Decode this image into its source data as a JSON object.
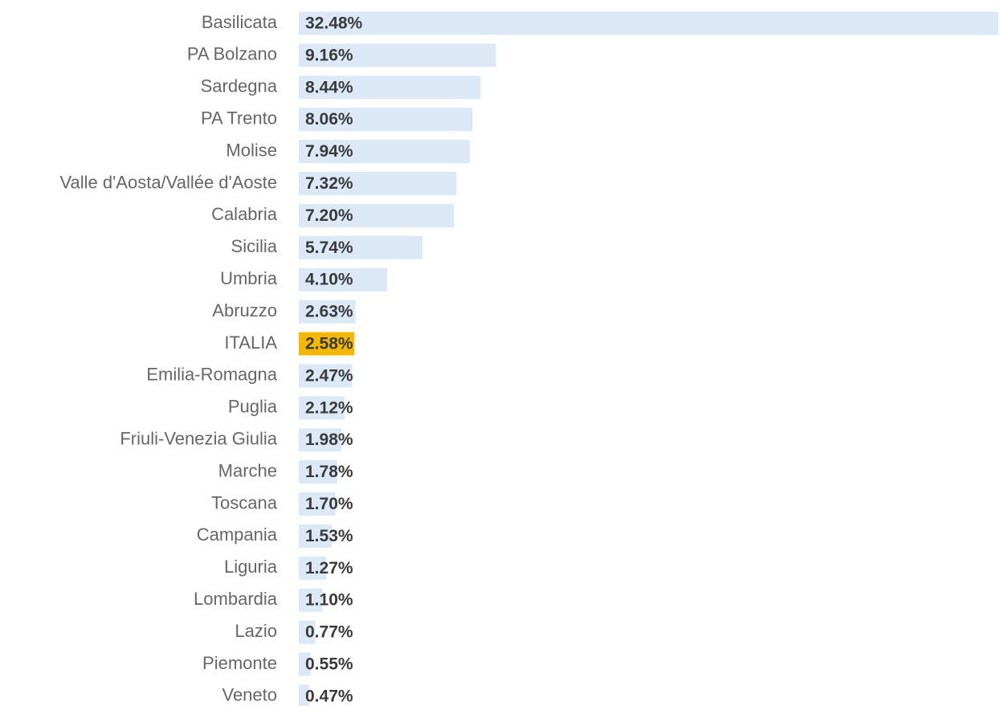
{
  "chart_data": {
    "type": "bar",
    "orientation": "horizontal",
    "categories": [
      "Basilicata",
      "PA Bolzano",
      "Sardegna",
      "PA Trento",
      "Molise",
      "Valle d'Aosta/Vallée d'Aoste",
      "Calabria",
      "Sicilia",
      "Umbria",
      "Abruzzo",
      "ITALIA",
      "Emilia-Romagna",
      "Puglia",
      "Friuli-Venezia Giulia",
      "Marche",
      "Toscana",
      "Campania",
      "Liguria",
      "Lombardia",
      "Lazio",
      "Piemonte",
      "Veneto"
    ],
    "values": [
      32.48,
      9.16,
      8.44,
      8.06,
      7.94,
      7.32,
      7.2,
      5.74,
      4.1,
      2.63,
      2.58,
      2.47,
      2.12,
      1.98,
      1.78,
      1.7,
      1.53,
      1.27,
      1.1,
      0.77,
      0.55,
      0.47
    ],
    "value_labels": [
      "32.48%",
      "9.16%",
      "8.44%",
      "8.06%",
      "7.94%",
      "7.32%",
      "7.20%",
      "5.74%",
      "4.10%",
      "2.63%",
      "2.58%",
      "2.47%",
      "2.12%",
      "1.98%",
      "1.78%",
      "1.70%",
      "1.53%",
      "1.27%",
      "1.10%",
      "0.77%",
      "0.55%",
      "0.47%"
    ],
    "colors": [
      "#dce8f5",
      "#dce8f5",
      "#dce8f5",
      "#dce8f5",
      "#dce8f5",
      "#dce8f5",
      "#dce8f5",
      "#dce8f5",
      "#dce8f5",
      "#dce8f5",
      "#f5b800",
      "#dce8f5",
      "#dce8f5",
      "#dce8f5",
      "#dce8f5",
      "#dce8f5",
      "#dce8f5",
      "#dce8f5",
      "#dce8f5",
      "#dce8f5",
      "#dce8f5",
      "#dce8f5"
    ]
  }
}
